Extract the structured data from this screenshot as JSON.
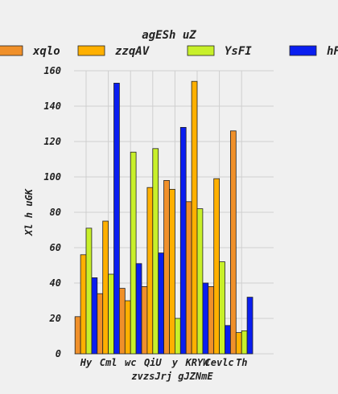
{
  "chart_data": {
    "type": "bar",
    "title": "agESh uZ",
    "xlabel": "zvzsJrj gJZNmE",
    "ylabel": "Xl h uGK",
    "ylim": [
      0,
      160
    ],
    "yticks": [
      0,
      20,
      40,
      60,
      80,
      100,
      120,
      140,
      160
    ],
    "grid": true,
    "legend_position": "top",
    "categories": [
      "Hy",
      "Cml",
      "wc",
      "QiU",
      "y",
      "KRYW",
      "Cevlc",
      "Th"
    ],
    "series": [
      {
        "name": "xqlo",
        "color": "#f0902a",
        "values": [
          21,
          34,
          37,
          38,
          98,
          86,
          38,
          126
        ]
      },
      {
        "name": "zzqAV",
        "color": "#ffb000",
        "values": [
          56,
          75,
          30,
          94,
          93,
          154,
          99,
          12
        ]
      },
      {
        "name": "YsFI",
        "color": "#c8f02a",
        "values": [
          71,
          45,
          114,
          116,
          20,
          82,
          52,
          13
        ]
      },
      {
        "name": "hF",
        "color": "#0a1ef0",
        "values": [
          43,
          153,
          51,
          57,
          128,
          40,
          16,
          32
        ]
      }
    ]
  }
}
